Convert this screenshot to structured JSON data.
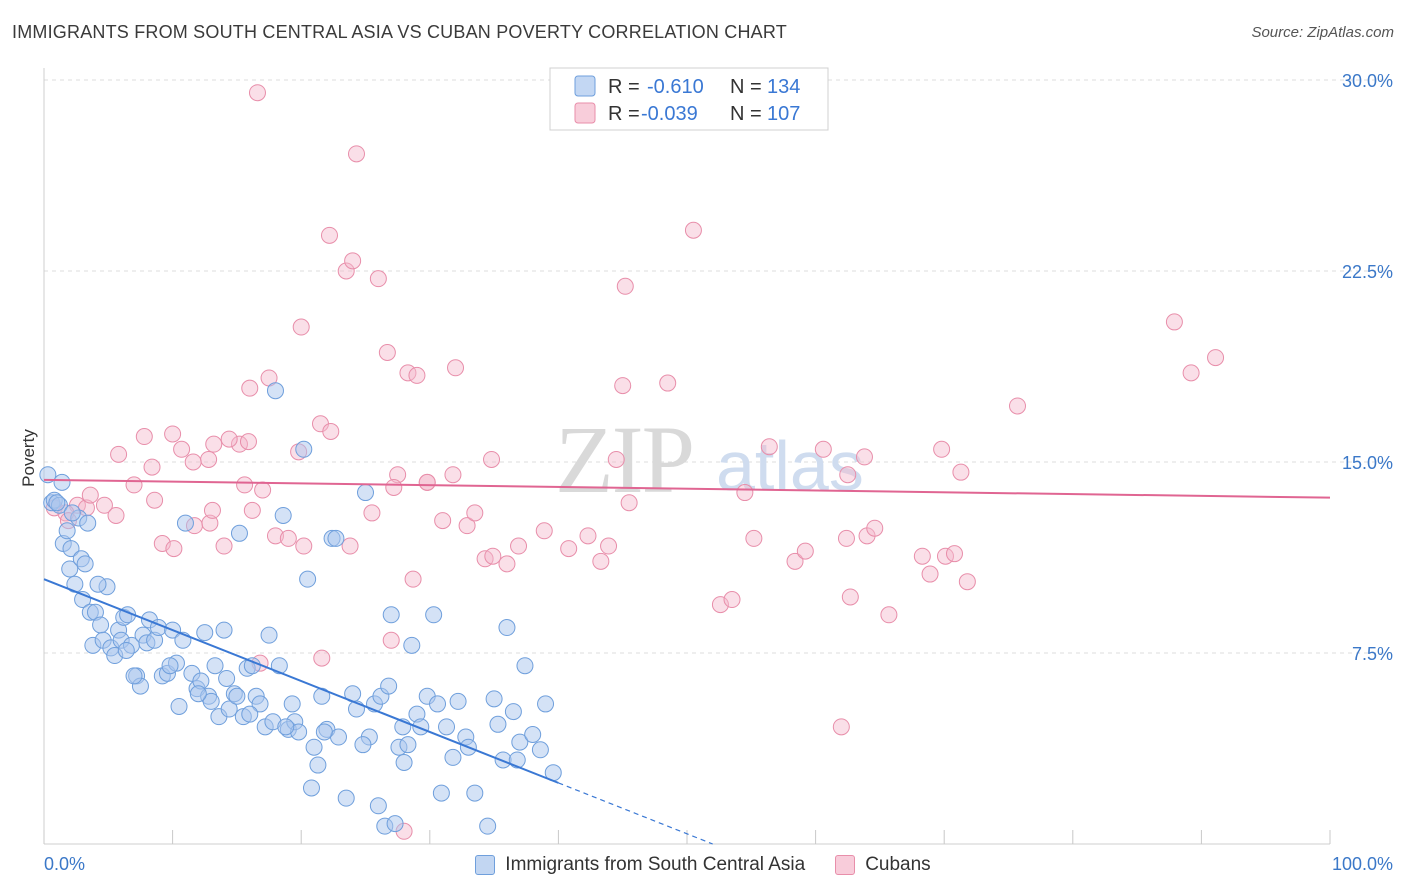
{
  "title": "IMMIGRANTS FROM SOUTH CENTRAL ASIA VS CUBAN POVERTY CORRELATION CHART",
  "source": "Source: ZipAtlas.com",
  "watermark": {
    "zip": "ZIP",
    "atlas": "atlas"
  },
  "legend_top": [
    {
      "r_label": "R =",
      "r_value": "-0.610",
      "n_label": "N =",
      "n_value": "134"
    },
    {
      "r_label": "R =",
      "r_value": "-0.039",
      "n_label": "N =",
      "n_value": "107"
    }
  ],
  "colors": {
    "blue_fill": "#a9c6ee",
    "blue_stroke": "#6f9fdc",
    "blue_line": "#3a78d4",
    "pink_fill": "#f5b8cb",
    "pink_stroke": "#e88eaa",
    "pink_line": "#e06592",
    "grid": "#dcdcdc",
    "tick_text": "#3b78c8"
  },
  "chart_data": {
    "type": "scatter",
    "title": "IMMIGRANTS FROM SOUTH CENTRAL ASIA VS CUBAN POVERTY CORRELATION CHART",
    "xlabel": "",
    "ylabel": "Poverty",
    "xlim": [
      0,
      100
    ],
    "ylim": [
      0,
      30
    ],
    "x_tick_labels": [
      "0.0%",
      "100.0%"
    ],
    "y_tick_labels": [
      "7.5%",
      "15.0%",
      "22.5%",
      "30.0%"
    ],
    "y_ticks": [
      7.5,
      15.0,
      22.5,
      30.0
    ],
    "grid": true,
    "legend_position": "top-center",
    "series": [
      {
        "name": "Immigrants from South Central Asia",
        "color": "blue",
        "stats": {
          "R": -0.61,
          "N": 134
        },
        "trend": {
          "x0": 0,
          "y0": 10.4,
          "x1": 40,
          "y1": 2.4,
          "extend_x": 52,
          "extend_y": 0
        },
        "points": [
          [
            0.3,
            14.5
          ],
          [
            0.6,
            13.4
          ],
          [
            0.8,
            13.5
          ],
          [
            1.2,
            13.3
          ],
          [
            1.4,
            14.2
          ],
          [
            1.5,
            11.8
          ],
          [
            1.8,
            12.3
          ],
          [
            2.0,
            10.8
          ],
          [
            2.1,
            11.6
          ],
          [
            2.4,
            10.2
          ],
          [
            2.7,
            12.8
          ],
          [
            2.9,
            11.2
          ],
          [
            3.0,
            9.6
          ],
          [
            3.2,
            11.0
          ],
          [
            3.6,
            9.1
          ],
          [
            3.8,
            7.8
          ],
          [
            4.0,
            9.1
          ],
          [
            4.4,
            8.6
          ],
          [
            4.6,
            8.0
          ],
          [
            4.9,
            10.1
          ],
          [
            5.2,
            7.7
          ],
          [
            5.5,
            7.4
          ],
          [
            5.8,
            8.4
          ],
          [
            6.0,
            8.0
          ],
          [
            6.2,
            8.9
          ],
          [
            6.5,
            9.0
          ],
          [
            6.8,
            7.8
          ],
          [
            7.2,
            6.6
          ],
          [
            7.5,
            6.2
          ],
          [
            7.7,
            8.2
          ],
          [
            8.0,
            7.9
          ],
          [
            8.2,
            8.8
          ],
          [
            8.6,
            8.0
          ],
          [
            8.9,
            8.5
          ],
          [
            9.2,
            6.6
          ],
          [
            9.6,
            6.7
          ],
          [
            10.0,
            8.4
          ],
          [
            10.3,
            7.1
          ],
          [
            10.5,
            5.4
          ],
          [
            10.8,
            8.0
          ],
          [
            11.0,
            12.6
          ],
          [
            11.5,
            6.7
          ],
          [
            11.9,
            6.1
          ],
          [
            12.2,
            6.4
          ],
          [
            12.5,
            8.3
          ],
          [
            12.8,
            5.8
          ],
          [
            13.0,
            5.6
          ],
          [
            13.3,
            7.0
          ],
          [
            13.6,
            5.0
          ],
          [
            14.0,
            8.4
          ],
          [
            14.2,
            6.5
          ],
          [
            14.4,
            5.3
          ],
          [
            14.8,
            5.9
          ],
          [
            15.2,
            12.2
          ],
          [
            15.5,
            5.0
          ],
          [
            15.8,
            6.9
          ],
          [
            16.2,
            7.0
          ],
          [
            16.5,
            5.8
          ],
          [
            16.8,
            5.5
          ],
          [
            17.2,
            4.6
          ],
          [
            17.5,
            8.2
          ],
          [
            17.8,
            4.8
          ],
          [
            18.0,
            17.8
          ],
          [
            18.3,
            7.0
          ],
          [
            18.6,
            12.9
          ],
          [
            19.0,
            4.5
          ],
          [
            19.3,
            5.5
          ],
          [
            19.5,
            4.8
          ],
          [
            19.8,
            4.4
          ],
          [
            20.2,
            15.5
          ],
          [
            20.5,
            10.4
          ],
          [
            20.8,
            2.2
          ],
          [
            21.0,
            3.8
          ],
          [
            21.3,
            3.1
          ],
          [
            21.6,
            5.8
          ],
          [
            22.0,
            4.5
          ],
          [
            22.4,
            12.0
          ],
          [
            22.7,
            12.0
          ],
          [
            22.9,
            4.2
          ],
          [
            23.5,
            1.8
          ],
          [
            24.0,
            5.9
          ],
          [
            24.3,
            5.3
          ],
          [
            25.0,
            13.8
          ],
          [
            25.3,
            4.2
          ],
          [
            25.7,
            5.5
          ],
          [
            26.0,
            1.5
          ],
          [
            26.2,
            5.8
          ],
          [
            26.5,
            0.7
          ],
          [
            26.8,
            6.2
          ],
          [
            27.0,
            9.0
          ],
          [
            27.3,
            0.8
          ],
          [
            27.6,
            3.8
          ],
          [
            28.0,
            3.2
          ],
          [
            28.3,
            3.9
          ],
          [
            28.6,
            7.8
          ],
          [
            29.0,
            5.1
          ],
          [
            29.3,
            4.6
          ],
          [
            29.8,
            5.8
          ],
          [
            30.3,
            9.0
          ],
          [
            30.6,
            5.5
          ],
          [
            30.9,
            2.0
          ],
          [
            31.3,
            4.6
          ],
          [
            31.8,
            3.4
          ],
          [
            32.2,
            5.6
          ],
          [
            32.8,
            4.2
          ],
          [
            33.5,
            2.0
          ],
          [
            34.5,
            0.7
          ],
          [
            35.0,
            5.7
          ],
          [
            35.3,
            4.7
          ],
          [
            35.7,
            3.3
          ],
          [
            36.0,
            8.5
          ],
          [
            36.5,
            5.2
          ],
          [
            37.0,
            4.0
          ],
          [
            37.4,
            7.0
          ],
          [
            38.0,
            4.3
          ],
          [
            38.6,
            3.7
          ],
          [
            39.0,
            5.5
          ],
          [
            39.6,
            2.8
          ],
          [
            1.0,
            13.4
          ],
          [
            2.2,
            13.0
          ],
          [
            3.4,
            12.6
          ],
          [
            4.2,
            10.2
          ],
          [
            6.4,
            7.6
          ],
          [
            7.0,
            6.6
          ],
          [
            9.8,
            7.0
          ],
          [
            12.0,
            5.9
          ],
          [
            15.0,
            5.8
          ],
          [
            16.0,
            5.1
          ],
          [
            18.8,
            4.6
          ],
          [
            21.8,
            4.4
          ],
          [
            24.8,
            3.9
          ],
          [
            27.9,
            4.6
          ],
          [
            33.0,
            3.8
          ],
          [
            36.8,
            3.3
          ]
        ]
      },
      {
        "name": "Cubans",
        "color": "pink",
        "stats": {
          "R": -0.039,
          "N": 107
        },
        "trend": {
          "x0": 0,
          "y0": 14.3,
          "x1": 100,
          "y1": 13.6
        },
        "points": [
          [
            16.6,
            29.5
          ],
          [
            24.3,
            27.1
          ],
          [
            22.2,
            23.9
          ],
          [
            23.5,
            22.5
          ],
          [
            24.0,
            22.9
          ],
          [
            26.0,
            22.2
          ],
          [
            50.5,
            24.1
          ],
          [
            45.2,
            21.9
          ],
          [
            20.0,
            20.3
          ],
          [
            26.7,
            19.3
          ],
          [
            28.3,
            18.5
          ],
          [
            29.0,
            18.4
          ],
          [
            32.0,
            18.7
          ],
          [
            17.5,
            18.3
          ],
          [
            16.0,
            17.9
          ],
          [
            45.0,
            18.0
          ],
          [
            48.5,
            18.1
          ],
          [
            21.5,
            16.5
          ],
          [
            22.3,
            16.2
          ],
          [
            15.2,
            15.7
          ],
          [
            15.9,
            15.8
          ],
          [
            14.4,
            15.9
          ],
          [
            10.0,
            16.1
          ],
          [
            7.8,
            16.0
          ],
          [
            12.8,
            15.1
          ],
          [
            5.8,
            15.3
          ],
          [
            8.4,
            14.8
          ],
          [
            10.7,
            15.5
          ],
          [
            11.6,
            15.0
          ],
          [
            13.2,
            15.7
          ],
          [
            19.8,
            15.4
          ],
          [
            27.5,
            14.5
          ],
          [
            29.8,
            14.2
          ],
          [
            31.8,
            14.5
          ],
          [
            34.8,
            15.1
          ],
          [
            44.5,
            15.1
          ],
          [
            54.5,
            13.8
          ],
          [
            56.4,
            15.6
          ],
          [
            60.6,
            15.5
          ],
          [
            62.5,
            14.5
          ],
          [
            63.8,
            15.2
          ],
          [
            69.8,
            15.5
          ],
          [
            71.3,
            14.6
          ],
          [
            87.9,
            20.5
          ],
          [
            91.1,
            19.1
          ],
          [
            89.2,
            18.5
          ],
          [
            75.7,
            17.2
          ],
          [
            2.6,
            13.3
          ],
          [
            3.3,
            13.2
          ],
          [
            3.6,
            13.7
          ],
          [
            4.7,
            13.3
          ],
          [
            5.6,
            12.9
          ],
          [
            7.0,
            14.1
          ],
          [
            8.6,
            13.5
          ],
          [
            9.2,
            11.8
          ],
          [
            10.1,
            11.6
          ],
          [
            11.7,
            12.5
          ],
          [
            12.9,
            12.6
          ],
          [
            13.1,
            13.1
          ],
          [
            14.0,
            11.7
          ],
          [
            15.6,
            14.1
          ],
          [
            16.2,
            13.1
          ],
          [
            17.0,
            13.9
          ],
          [
            18.0,
            12.1
          ],
          [
            19.0,
            12.0
          ],
          [
            20.2,
            11.7
          ],
          [
            23.8,
            11.7
          ],
          [
            25.5,
            13.0
          ],
          [
            27.2,
            14.0
          ],
          [
            28.7,
            10.4
          ],
          [
            29.8,
            14.2
          ],
          [
            31.0,
            12.7
          ],
          [
            32.9,
            12.5
          ],
          [
            33.5,
            13.0
          ],
          [
            34.3,
            11.2
          ],
          [
            34.9,
            11.3
          ],
          [
            36.0,
            11.0
          ],
          [
            36.9,
            11.7
          ],
          [
            38.9,
            12.3
          ],
          [
            40.8,
            11.6
          ],
          [
            42.3,
            12.1
          ],
          [
            43.3,
            11.1
          ],
          [
            43.9,
            11.7
          ],
          [
            45.5,
            13.4
          ],
          [
            52.6,
            9.4
          ],
          [
            53.5,
            9.6
          ],
          [
            55.2,
            12.0
          ],
          [
            58.4,
            11.1
          ],
          [
            59.2,
            11.5
          ],
          [
            62.4,
            12.0
          ],
          [
            62.7,
            9.7
          ],
          [
            64.0,
            12.1
          ],
          [
            64.6,
            12.4
          ],
          [
            65.7,
            9.0
          ],
          [
            68.3,
            11.3
          ],
          [
            68.9,
            10.6
          ],
          [
            70.1,
            11.3
          ],
          [
            70.8,
            11.4
          ],
          [
            71.8,
            10.3
          ],
          [
            62.0,
            4.6
          ],
          [
            21.6,
            7.3
          ],
          [
            28.0,
            0.5
          ],
          [
            0.8,
            13.2
          ],
          [
            1.7,
            13.0
          ],
          [
            1.9,
            12.7
          ],
          [
            16.8,
            7.1
          ],
          [
            27.0,
            8.0
          ]
        ]
      }
    ]
  },
  "bottom_legend": [
    {
      "label": "Immigrants from South Central Asia"
    },
    {
      "label": "Cubans"
    }
  ]
}
